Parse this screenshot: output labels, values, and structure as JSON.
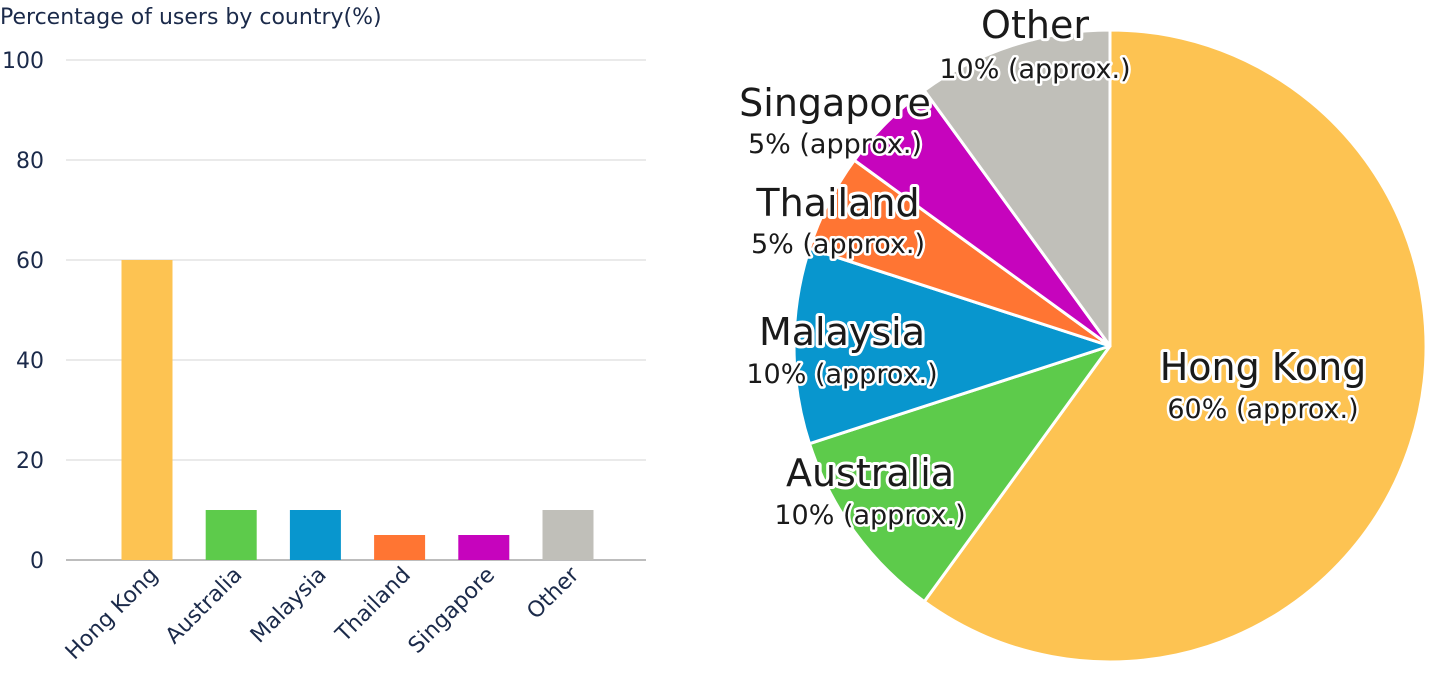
{
  "chart_data": [
    {
      "type": "bar",
      "title": "Percentage of users by country(%)",
      "categories": [
        "Hong Kong",
        "Australia",
        "Malaysia",
        "Thailand",
        "Singapore",
        "Other"
      ],
      "values": [
        60,
        10,
        10,
        5,
        5,
        10
      ],
      "colors": [
        "#fdc352",
        "#5dcb4b",
        "#0896ce",
        "#ff7533",
        "#c604bd",
        "#c0bfb9"
      ],
      "ylim": [
        0,
        100
      ],
      "yticks": [
        0,
        20,
        40,
        60,
        80,
        100
      ],
      "grid": true,
      "legend": "none"
    },
    {
      "type": "pie",
      "categories": [
        "Hong Kong",
        "Australia",
        "Malaysia",
        "Thailand",
        "Singapore",
        "Other"
      ],
      "values": [
        60,
        10,
        10,
        5,
        5,
        10
      ],
      "value_labels": [
        "60% (approx.)",
        "10% (approx.)",
        "10% (approx.)",
        "5% (approx.)",
        "5% (approx.)",
        "10% (approx.)"
      ],
      "colors": [
        "#fdc352",
        "#5dcb4b",
        "#0896ce",
        "#ff7533",
        "#c604bd",
        "#c0bfb9"
      ],
      "start": "12 o'clock, clockwise",
      "legend": "none"
    }
  ]
}
